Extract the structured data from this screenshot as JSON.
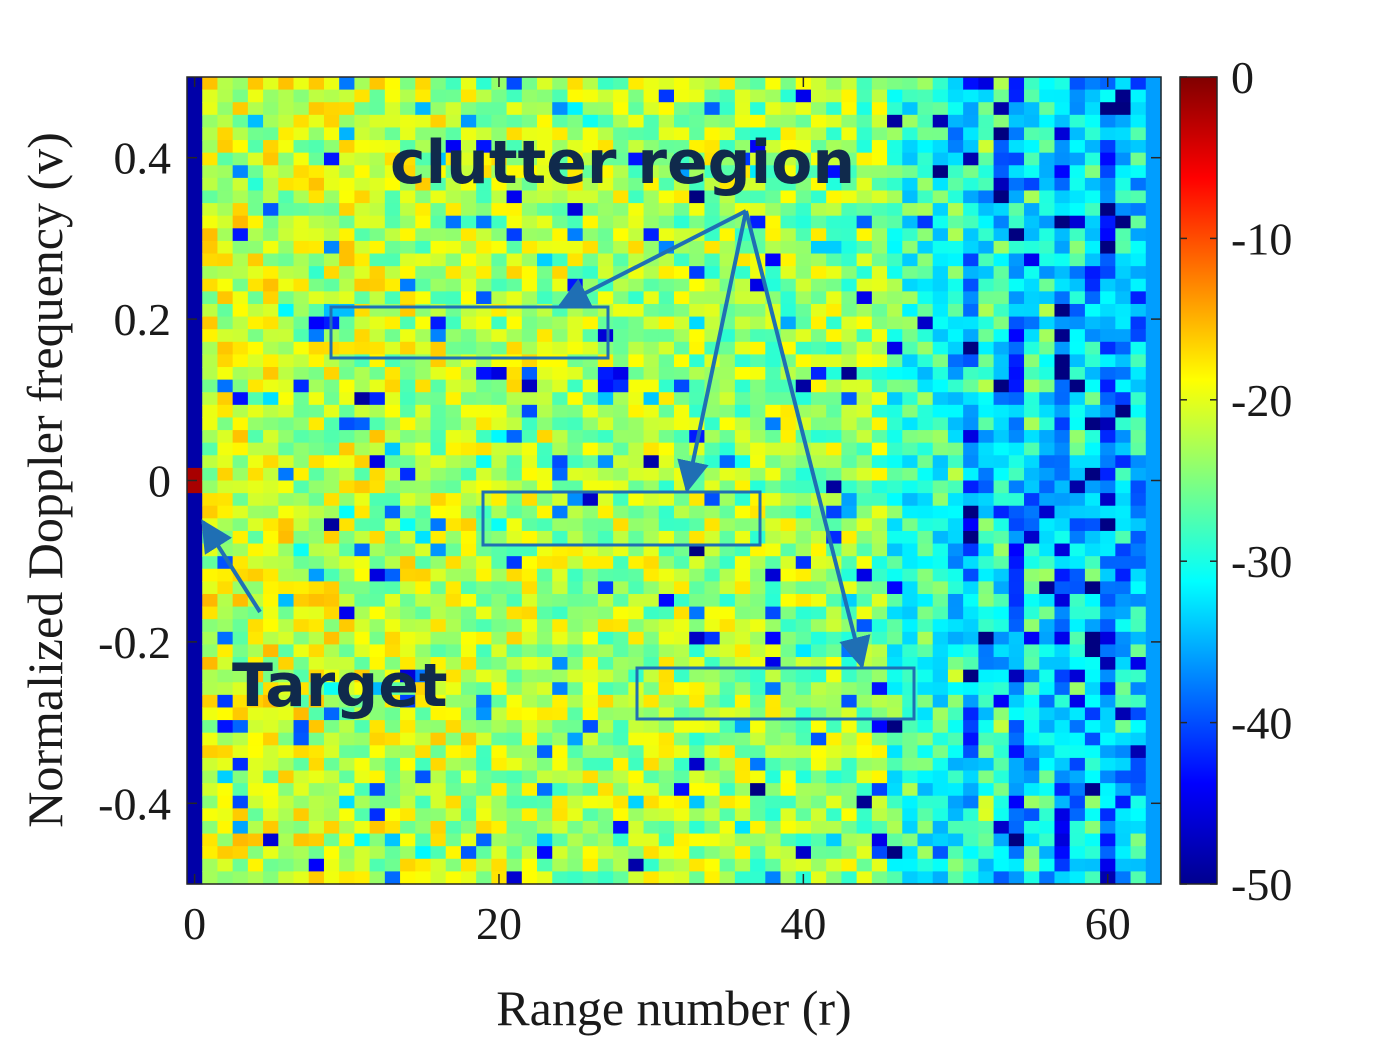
{
  "chart_data": {
    "type": "heatmap",
    "title": "",
    "xlabel": "Range number (r)",
    "ylabel": "Normalized Doppler frequency (v)",
    "xlim": [
      -0.5,
      63.5
    ],
    "ylim": [
      -0.5,
      0.5
    ],
    "n_range_bins": 64,
    "n_doppler_bins": 64,
    "x_ticks": [
      0,
      20,
      40,
      60
    ],
    "x_tick_labels": [
      "0",
      "20",
      "40",
      "60"
    ],
    "y_ticks": [
      0.4,
      0.2,
      0,
      -0.2,
      -0.4
    ],
    "y_tick_labels": [
      "0.4",
      "0.2",
      "0",
      "-0.2",
      "-0.4"
    ],
    "colorbar": {
      "colormap": "jet",
      "range": [
        -50,
        0
      ],
      "ticks": [
        0,
        -10,
        -20,
        -30,
        -40,
        -50
      ],
      "tick_labels": [
        "0",
        "-10",
        "-20",
        "-30",
        "-40",
        "-50"
      ]
    },
    "approx_levels_db": {
      "range_0_column": -48,
      "target_cell": {
        "range": 0,
        "doppler": 0,
        "value": -2
      },
      "clutter_range_0_to_45": -21,
      "transition_range_45_to_58": -28,
      "far_range_58_to_63": -33
    },
    "annotations": [
      {
        "text": "clutter region",
        "boxes": [
          {
            "range": [
              9,
              27
            ],
            "doppler": [
              0.15,
              0.21
            ]
          },
          {
            "range": [
              19,
              37
            ],
            "doppler": [
              -0.08,
              -0.015
            ]
          },
          {
            "range": [
              29,
              47
            ],
            "doppler": [
              -0.29,
              -0.23
            ]
          }
        ]
      },
      {
        "text": "Target",
        "points_to": {
          "range": 0,
          "doppler": -0.05
        }
      }
    ],
    "grid": false
  },
  "annotation_color": "#1f6fb4"
}
